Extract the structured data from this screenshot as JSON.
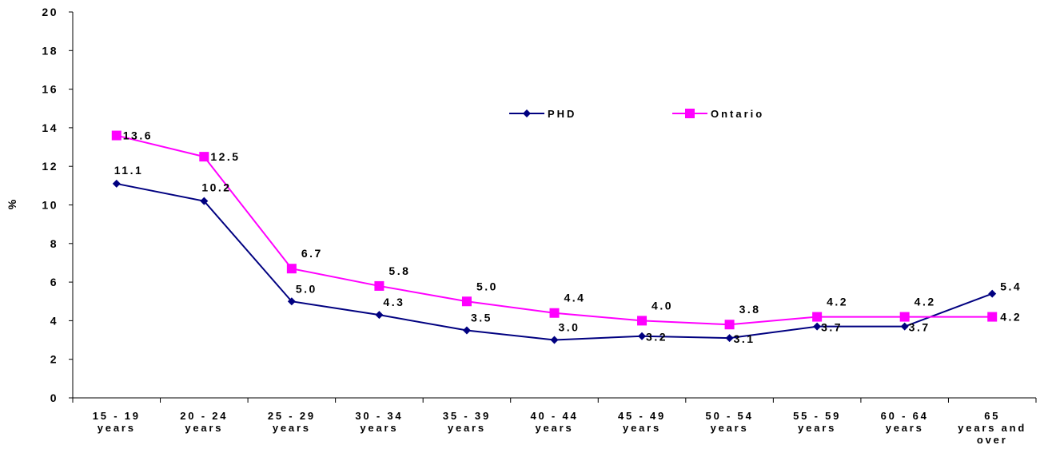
{
  "chart_data": {
    "type": "line",
    "title": "",
    "xlabel": "",
    "ylabel": "%",
    "ylim": [
      0,
      20
    ],
    "yticks": [
      0,
      2,
      4,
      6,
      8,
      10,
      12,
      14,
      16,
      18,
      20
    ],
    "grid": false,
    "legend_position": "top-right",
    "categories": [
      [
        "15 - 19",
        "years"
      ],
      [
        "20 - 24",
        "years"
      ],
      [
        "25 - 29",
        "years"
      ],
      [
        "30 - 34",
        "years"
      ],
      [
        "35 - 39",
        "years"
      ],
      [
        "40 - 44",
        "years"
      ],
      [
        "45 - 49",
        "years"
      ],
      [
        "50 - 54",
        "years"
      ],
      [
        "55 - 59",
        "years"
      ],
      [
        "60 - 64",
        "years"
      ],
      [
        "65",
        "years and",
        "over"
      ]
    ],
    "series": [
      {
        "name": "PHD",
        "color": "#000080",
        "marker": "diamond",
        "values": [
          11.1,
          10.2,
          5.0,
          4.3,
          3.5,
          3.0,
          3.2,
          3.1,
          3.7,
          3.7,
          5.4
        ],
        "labels": [
          "11.1",
          "10.2",
          "5.0",
          "4.3",
          "3.5",
          "3.0",
          "3.2",
          "3.1",
          "3.7",
          "3.7",
          "5.4"
        ]
      },
      {
        "name": "Ontario",
        "color": "#FF00FF",
        "marker": "square",
        "values": [
          13.6,
          12.5,
          6.7,
          5.8,
          5.0,
          4.4,
          4.0,
          3.8,
          4.2,
          4.2,
          4.2
        ],
        "labels": [
          "13.6",
          "12.5",
          "6.7",
          "5.8",
          "5.0",
          "4.4",
          "4.0",
          "3.8",
          "4.2",
          "4.2",
          "4.2"
        ]
      }
    ]
  }
}
